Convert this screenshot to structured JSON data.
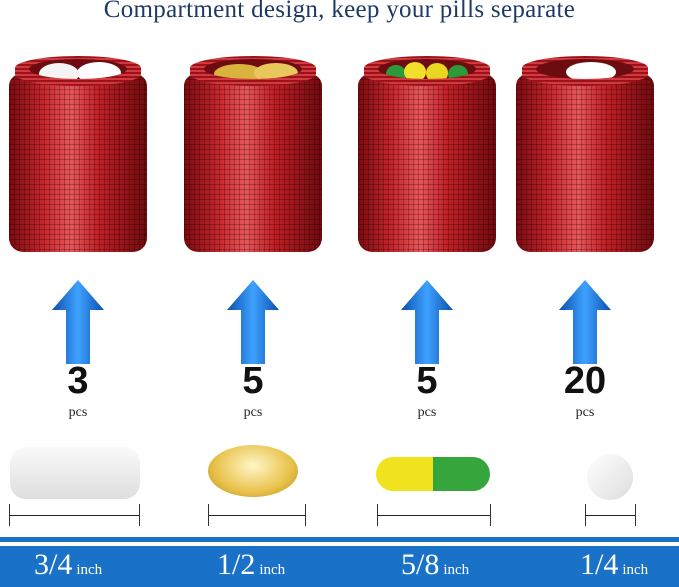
{
  "title": "Compartment design, keep your pills separate",
  "items": [
    {
      "count": "3",
      "unit": "pcs",
      "size": "3/4",
      "size_unit": "inch"
    },
    {
      "count": "5",
      "unit": "pcs",
      "size": "1/2",
      "size_unit": "inch"
    },
    {
      "count": "5",
      "unit": "pcs",
      "size": "5/8",
      "size_unit": "inch"
    },
    {
      "count": "20",
      "unit": "pcs",
      "size": "1/4",
      "size_unit": "inch"
    }
  ],
  "colors": {
    "title": "#1d3a66",
    "container": "#c8262d",
    "arrow": "#1e7fe0",
    "band": "#1a72c8"
  }
}
